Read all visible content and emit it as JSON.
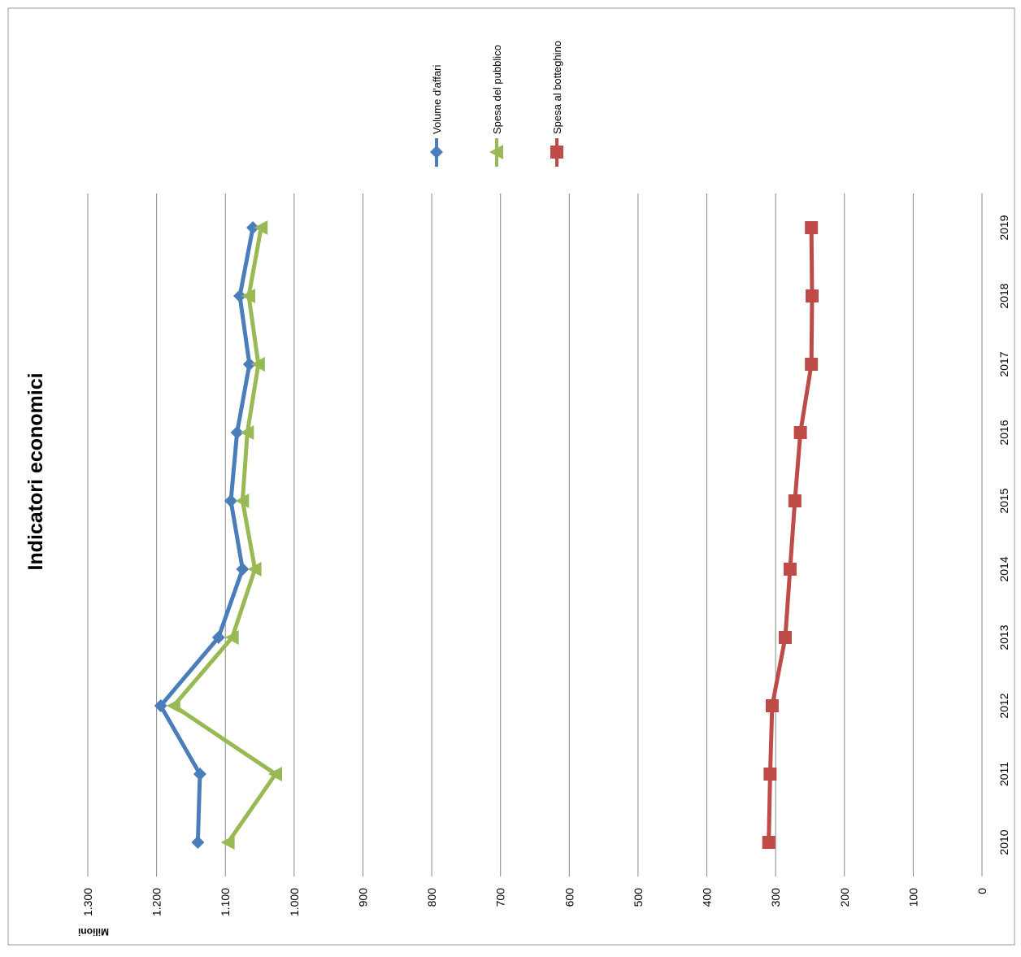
{
  "chart_data": {
    "type": "line",
    "title": "Indicatori economici",
    "y_label": "Milioni",
    "categories": [
      "2010",
      "2011",
      "2012",
      "2013",
      "2014",
      "2015",
      "2016",
      "2017",
      "2018",
      "2019"
    ],
    "series": [
      {
        "name": "Volume d'affari",
        "color": "#4a7ebb",
        "marker": "diamond",
        "values": [
          1140,
          1137,
          1194,
          1110,
          1075,
          1092,
          1083,
          1065,
          1079,
          1060
        ]
      },
      {
        "name": "Spesa del pubblico",
        "color": "#98b954",
        "marker": "triangle",
        "values": [
          1096,
          1027,
          1175,
          1090,
          1057,
          1075,
          1068,
          1052,
          1066,
          1048
        ]
      },
      {
        "name": "Spesa al botteghino",
        "color": "#be4b48",
        "marker": "square",
        "values": [
          310,
          308,
          305,
          286,
          279,
          272,
          264,
          248,
          247,
          248
        ]
      }
    ],
    "ylim": [
      0,
      1300
    ],
    "yticks": [
      0,
      100,
      200,
      300,
      400,
      500,
      600,
      700,
      800,
      900,
      {
        "value": 1000,
        "label": "1.000"
      },
      {
        "value": 1100,
        "label": "1.100"
      },
      {
        "value": 1200,
        "label": "1.200"
      },
      {
        "value": 1300,
        "label": "1.300"
      }
    ],
    "grid": true,
    "legend": "top"
  }
}
